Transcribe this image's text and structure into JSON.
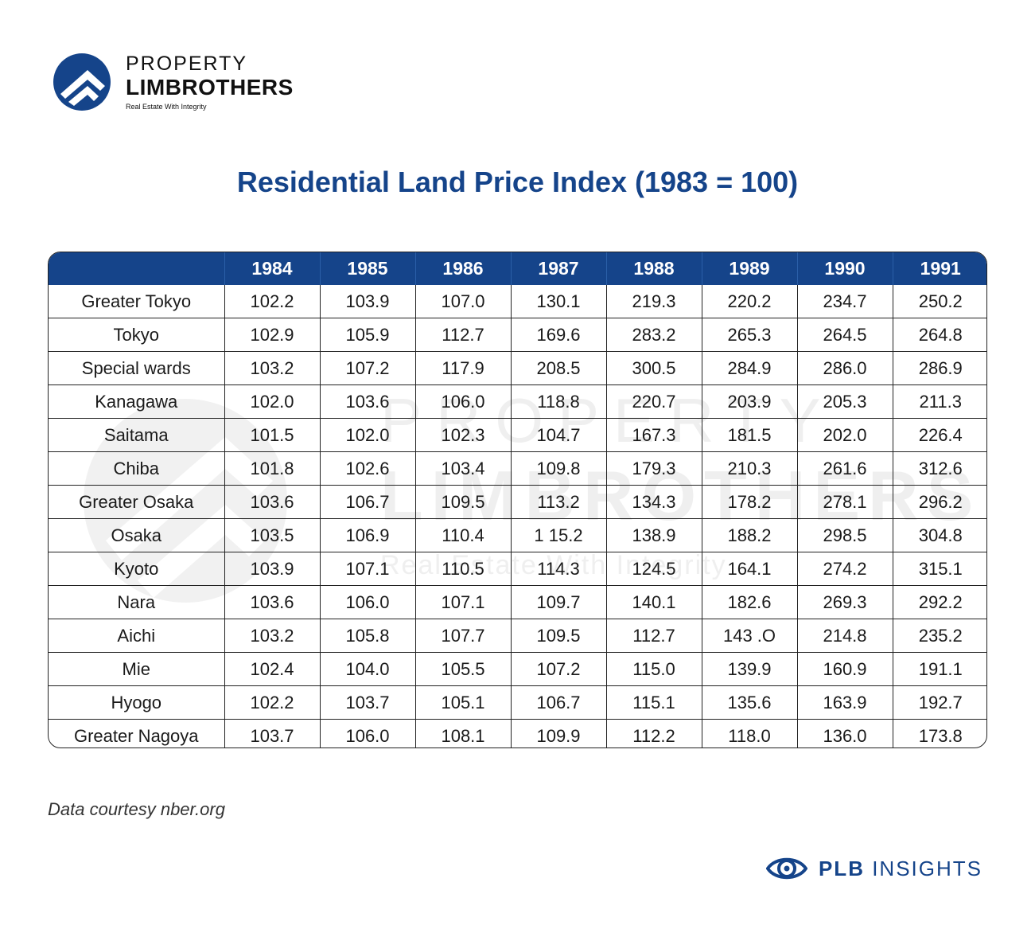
{
  "logo": {
    "line1": "PROPERTY",
    "line2": "LIMBROTHERS",
    "tagline": "Real Estate With Integrity"
  },
  "watermark": {
    "line1": "PROPERTY",
    "line2": "LIMBROTHERS",
    "tagline": "Real Estate With Integrity"
  },
  "colors": {
    "brand_blue": "#15448a",
    "header_text": "#ffffff",
    "border": "#222222"
  },
  "chart_data": {
    "type": "table",
    "title": "Residential Land Price Index (1983 = 100)",
    "columns": [
      "1984",
      "1985",
      "1986",
      "1987",
      "1988",
      "1989",
      "1990",
      "1991"
    ],
    "rows": [
      {
        "region": "Greater Tokyo",
        "values": [
          "102.2",
          "103.9",
          "107.0",
          "130.1",
          "219.3",
          "220.2",
          "234.7",
          "250.2"
        ]
      },
      {
        "region": "Tokyo",
        "values": [
          "102.9",
          "105.9",
          "112.7",
          "169.6",
          "283.2",
          "265.3",
          "264.5",
          "264.8"
        ]
      },
      {
        "region": "Special wards",
        "values": [
          "103.2",
          "107.2",
          "117.9",
          "208.5",
          "300.5",
          "284.9",
          "286.0",
          "286.9"
        ]
      },
      {
        "region": "Kanagawa",
        "values": [
          "102.0",
          "103.6",
          "106.0",
          "118.8",
          "220.7",
          "203.9",
          "205.3",
          "211.3"
        ]
      },
      {
        "region": "Saitama",
        "values": [
          "101.5",
          "102.0",
          "102.3",
          "104.7",
          "167.3",
          "181.5",
          "202.0",
          "226.4"
        ]
      },
      {
        "region": "Chiba",
        "values": [
          "101.8",
          "102.6",
          "103.4",
          "109.8",
          "179.3",
          "210.3",
          "261.6",
          "312.6"
        ]
      },
      {
        "region": "Greater Osaka",
        "values": [
          "103.6",
          "106.7",
          "109.5",
          "113.2",
          "134.3",
          "178.2",
          "278.1",
          "296.2"
        ]
      },
      {
        "region": "Osaka",
        "values": [
          "103.5",
          "106.9",
          "110.4",
          "1 15.2",
          "138.9",
          "188.2",
          "298.5",
          "304.8"
        ]
      },
      {
        "region": "Kyoto",
        "values": [
          "103.9",
          "107.1",
          "110.5",
          "114.3",
          "124.5",
          "164.1",
          "274.2",
          "315.1"
        ]
      },
      {
        "region": "Nara",
        "values": [
          "103.6",
          "106.0",
          "107.1",
          "109.7",
          "140.1",
          "182.6",
          "269.3",
          "292.2"
        ]
      },
      {
        "region": "Aichi",
        "values": [
          "103.2",
          "105.8",
          "107.7",
          "109.5",
          "112.7",
          "143 .O",
          "214.8",
          "235.2"
        ]
      },
      {
        "region": "Mie",
        "values": [
          "102.4",
          "104.0",
          "105.5",
          "107.2",
          "115.0",
          "139.9",
          "160.9",
          "191.1"
        ]
      },
      {
        "region": "Hyogo",
        "values": [
          "102.2",
          "103.7",
          "105.1",
          "106.7",
          "115.1",
          "135.6",
          "163.9",
          "192.7"
        ]
      },
      {
        "region": "Greater Nagoya",
        "values": [
          "103.7",
          "106.0",
          "108.1",
          "109.9",
          "112.2",
          "118.0",
          "136.0",
          "173.8"
        ]
      }
    ]
  },
  "footer": {
    "source": "Data courtesy nber.org",
    "brand_bold": "PLB",
    "brand_rest": "INSIGHTS"
  }
}
